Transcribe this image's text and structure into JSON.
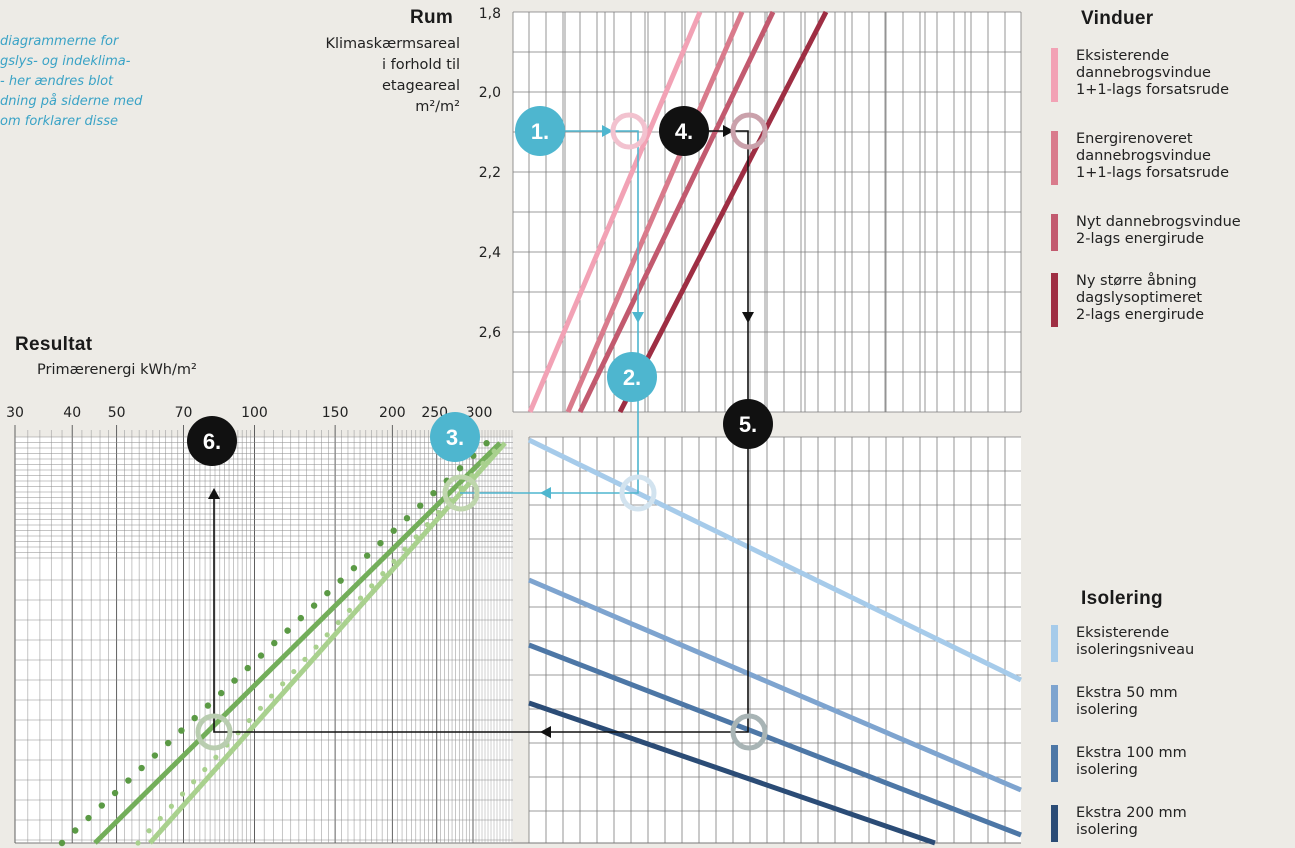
{
  "note": {
    "lines": [
      "diagrammerne for",
      "gslys- og indeklima-",
      "- her ændres blot",
      "dning på siderne med",
      "om forklarer disse"
    ]
  },
  "room": {
    "title": "Rum",
    "subtitle_lines": [
      "Klimaskærmsareal",
      "i forhold til",
      "etageareal",
      "m²/m²"
    ],
    "ticks": [
      "1,8",
      "2,0",
      "2,2",
      "2,4",
      "2,6"
    ]
  },
  "result": {
    "title": "Resultat",
    "subtitle": "Primærenergi kWh/m²",
    "ticks": [
      "30",
      "40",
      "50",
      "70",
      "100",
      "150",
      "200",
      "250",
      "300"
    ]
  },
  "windows": {
    "title": "Vinduer",
    "items": [
      {
        "lines": [
          "Eksisterende",
          "dannebrogsvindue",
          "1+1-lags forsatsrude"
        ],
        "color": "#f2a2b5"
      },
      {
        "lines": [
          "Energirenoveret",
          "dannebrogsvindue",
          "1+1-lags forsatsrude"
        ],
        "color": "#d97b8c"
      },
      {
        "lines": [
          "Nyt dannebrogsvindue",
          "2-lags energirude"
        ],
        "color": "#c25a6f"
      },
      {
        "lines": [
          "Ny større åbning",
          "dagslysoptimeret",
          "2-lags energirude"
        ],
        "color": "#9e2e43"
      }
    ]
  },
  "insulation": {
    "title": "Isolering",
    "items": [
      {
        "lines": [
          "Eksisterende",
          "isoleringsniveau"
        ],
        "color": "#a6cbea"
      },
      {
        "lines": [
          "Ekstra 50 mm",
          "isolering"
        ],
        "color": "#7ea4cf"
      },
      {
        "lines": [
          "Ekstra 100 mm",
          "isolering"
        ],
        "color": "#4d77a6"
      },
      {
        "lines": [
          "Ekstra 200 mm",
          "isolering"
        ],
        "color": "#2b4c76"
      }
    ]
  },
  "steps": [
    "1.",
    "2.",
    "3.",
    "4.",
    "5.",
    "6."
  ],
  "colors": {
    "background": "#edebe6",
    "grid": "#7a7a7a",
    "blue_step": "#4eb6cf",
    "black_step": "#111111",
    "green_light": "#a9d18e",
    "green_mid": "#73ae5a",
    "green_dark": "#5b9a45"
  },
  "chart_data": [
    {
      "type": "line",
      "panel": "Rum",
      "ylabel": "Klimaskærmsareal i forhold til etageareal m²/m²",
      "y_ticks": [
        1.8,
        2.0,
        2.2,
        2.4,
        2.6
      ],
      "series": [
        {
          "name": "Eksisterende dannebrogsvindue 1+1-lags forsatsrude"
        },
        {
          "name": "Energirenoveret dannebrogsvindue 1+1-lags forsatsrude"
        },
        {
          "name": "Nyt dannebrogsvindue 2-lags energirude"
        },
        {
          "name": "Ny større åbning dagslysoptimeret 2-lags energirude"
        }
      ]
    },
    {
      "type": "line",
      "panel": "Isolering",
      "series": [
        {
          "name": "Eksisterende isoleringsniveau"
        },
        {
          "name": "Ekstra 50 mm isolering"
        },
        {
          "name": "Ekstra 100 mm isolering"
        },
        {
          "name": "Ekstra 200 mm isolering"
        }
      ]
    },
    {
      "type": "line",
      "panel": "Resultat",
      "xlabel": "Primærenergi kWh/m²",
      "x_scale": "log",
      "x_ticks": [
        30,
        40,
        50,
        70,
        100,
        150,
        200,
        250,
        300
      ]
    }
  ]
}
